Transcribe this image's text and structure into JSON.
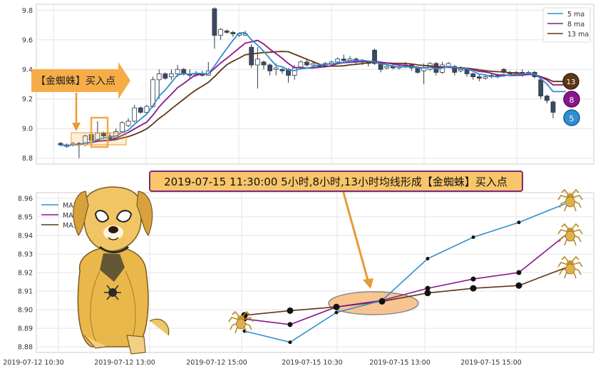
{
  "chart_data": [
    {
      "type": "candlestick",
      "yticks": [
        "9.8",
        "9.6",
        "9.4",
        "9.2",
        "9.0",
        "8.8"
      ],
      "ylim": [
        8.76,
        9.84
      ],
      "legend": {
        "position": "top-right",
        "entries": [
          "5 ma",
          "8 ma",
          "13 ma"
        ]
      },
      "grid": true,
      "candles": [
        [
          8.9,
          8.89,
          8.91,
          8.88
        ],
        [
          8.89,
          8.88,
          8.9,
          8.87
        ],
        [
          8.89,
          8.9,
          8.91,
          8.88
        ],
        [
          8.9,
          8.89,
          8.91,
          8.8
        ],
        [
          8.89,
          8.95,
          8.96,
          8.88
        ],
        [
          8.96,
          8.92,
          8.98,
          8.9
        ],
        [
          8.92,
          8.97,
          9.05,
          8.91
        ],
        [
          8.97,
          8.95,
          8.98,
          8.93
        ],
        [
          8.95,
          8.93,
          8.97,
          8.92
        ],
        [
          8.93,
          8.98,
          9.0,
          8.92
        ],
        [
          8.98,
          9.04,
          9.05,
          8.97
        ],
        [
          9.02,
          9.05,
          9.07,
          9.01
        ],
        [
          9.05,
          9.14,
          9.16,
          9.04
        ],
        [
          9.14,
          9.11,
          9.15,
          9.1
        ],
        [
          9.11,
          9.15,
          9.16,
          9.1
        ],
        [
          9.15,
          9.33,
          9.35,
          9.14
        ],
        [
          9.33,
          9.37,
          9.4,
          9.2
        ],
        [
          9.37,
          9.34,
          9.38,
          9.33
        ],
        [
          9.35,
          9.37,
          9.4,
          9.33
        ],
        [
          9.37,
          9.4,
          9.43,
          9.35
        ],
        [
          9.4,
          9.37,
          9.41,
          9.36
        ],
        [
          9.37,
          9.36,
          9.4,
          9.34
        ],
        [
          9.36,
          9.37,
          9.39,
          9.35
        ],
        [
          9.37,
          9.36,
          9.39,
          9.35
        ],
        [
          9.36,
          9.39,
          9.45,
          9.36
        ],
        [
          9.81,
          9.63,
          9.82,
          9.54
        ],
        [
          9.63,
          9.67,
          9.68,
          9.6
        ],
        [
          9.66,
          9.65,
          9.67,
          9.64
        ],
        [
          9.65,
          9.64,
          9.66,
          9.62
        ],
        [
          9.63,
          9.64,
          9.65,
          9.62
        ],
        [
          9.63,
          9.64,
          9.66,
          9.63
        ],
        [
          9.55,
          9.43,
          9.57,
          9.41
        ],
        [
          9.43,
          9.47,
          9.55,
          9.27
        ],
        [
          9.45,
          9.43,
          9.46,
          9.4
        ],
        [
          9.43,
          9.39,
          9.44,
          9.36
        ],
        [
          9.4,
          9.41,
          9.44,
          9.36
        ],
        [
          9.4,
          9.39,
          9.41,
          9.37
        ],
        [
          9.4,
          9.36,
          9.41,
          9.31
        ],
        [
          9.36,
          9.41,
          9.43,
          9.33
        ],
        [
          9.41,
          9.45,
          9.46,
          9.4
        ],
        [
          9.45,
          9.43,
          9.47,
          9.42
        ],
        [
          9.43,
          9.44,
          9.45,
          9.41
        ],
        [
          9.43,
          9.42,
          9.44,
          9.41
        ],
        [
          9.43,
          9.44,
          9.45,
          9.42
        ],
        [
          9.44,
          9.45,
          9.46,
          9.43
        ],
        [
          9.45,
          9.47,
          9.48,
          9.44
        ],
        [
          9.47,
          9.46,
          9.5,
          9.45
        ],
        [
          9.46,
          9.47,
          9.49,
          9.45
        ],
        [
          9.47,
          9.45,
          9.48,
          9.44
        ],
        [
          9.45,
          9.46,
          9.47,
          9.43
        ],
        [
          9.45,
          9.44,
          9.46,
          9.42
        ],
        [
          9.53,
          9.44,
          9.54,
          9.43
        ],
        [
          9.44,
          9.4,
          9.45,
          9.38
        ],
        [
          9.41,
          9.42,
          9.43,
          9.4
        ],
        [
          9.42,
          9.41,
          9.44,
          9.4
        ],
        [
          9.41,
          9.42,
          9.43,
          9.4
        ],
        [
          9.42,
          9.43,
          9.45,
          9.41
        ],
        [
          9.43,
          9.41,
          9.44,
          9.39
        ],
        [
          9.41,
          9.38,
          9.42,
          9.37
        ],
        [
          9.39,
          9.41,
          9.44,
          9.3
        ],
        [
          9.4,
          9.44,
          9.45,
          9.39
        ],
        [
          9.44,
          9.38,
          9.45,
          9.36
        ],
        [
          9.38,
          9.43,
          9.45,
          9.37
        ],
        [
          9.42,
          9.44,
          9.45,
          9.41
        ],
        [
          9.42,
          9.38,
          9.43,
          9.36
        ],
        [
          9.39,
          9.4,
          9.42,
          9.38
        ],
        [
          9.4,
          9.37,
          9.41,
          9.35
        ],
        [
          9.37,
          9.35,
          9.38,
          9.33
        ],
        [
          9.35,
          9.34,
          9.37,
          9.32
        ],
        [
          9.34,
          9.35,
          9.36,
          9.33
        ],
        [
          9.35,
          9.36,
          9.37,
          9.34
        ],
        [
          9.36,
          9.35,
          9.37,
          9.34
        ],
        [
          9.4,
          9.38,
          9.41,
          9.37
        ],
        [
          9.38,
          9.37,
          9.39,
          9.36
        ],
        [
          9.37,
          9.38,
          9.39,
          9.36
        ],
        [
          9.38,
          9.36,
          9.4,
          9.35
        ],
        [
          9.37,
          9.38,
          9.39,
          9.36
        ],
        [
          9.38,
          9.35,
          9.39,
          9.34
        ],
        [
          9.33,
          9.22,
          9.35,
          9.2
        ],
        [
          9.22,
          9.19,
          9.23,
          9.17
        ],
        [
          9.18,
          9.11,
          9.19,
          9.07
        ]
      ],
      "ma_end_labels": [
        "13",
        "8",
        "5"
      ]
    },
    {
      "type": "line",
      "title": "2019-07-15 11:30:00 5小时,8小时,13小时均线形成【金蜘蛛】买入点",
      "yticks": [
        "8.96",
        "8.95",
        "8.94",
        "8.93",
        "8.92",
        "8.91",
        "8.90",
        "8.89",
        "8.88"
      ],
      "xticks": [
        "2019-07-12 10:30",
        "2019-07-12 13:00",
        "2019-07-12 15:00",
        "2019-07-15 10:30",
        "2019-07-15 13:00",
        "2019-07-15 15:00"
      ],
      "ylim": [
        8.877,
        8.963
      ],
      "legend": {
        "position": "top-left"
      },
      "grid": true,
      "series": [
        {
          "name": "MA5",
          "values": [
            8.8885,
            8.8825,
            8.8985,
            8.905,
            8.9275,
            8.939,
            8.947,
            8.957
          ]
        },
        {
          "name": "MA8",
          "values": [
            8.895,
            8.892,
            8.9015,
            8.905,
            8.9115,
            8.9165,
            8.92,
            8.94
          ]
        },
        {
          "name": "MA13",
          "values": [
            8.897,
            8.8995,
            8.9015,
            8.9045,
            8.909,
            8.9115,
            8.913,
            8.9225
          ]
        }
      ]
    }
  ],
  "annotation": {
    "buy_label": "【金蜘蛛】买入点"
  },
  "colors": {
    "ma5": "#2f8fd0",
    "ma8": "#8b168b",
    "ma13": "#5e3717",
    "candle_up": "#ffffff",
    "candle_down": "#3b4a5e",
    "arrow": "#f5a93e",
    "title_bg": "#f9c56a"
  }
}
